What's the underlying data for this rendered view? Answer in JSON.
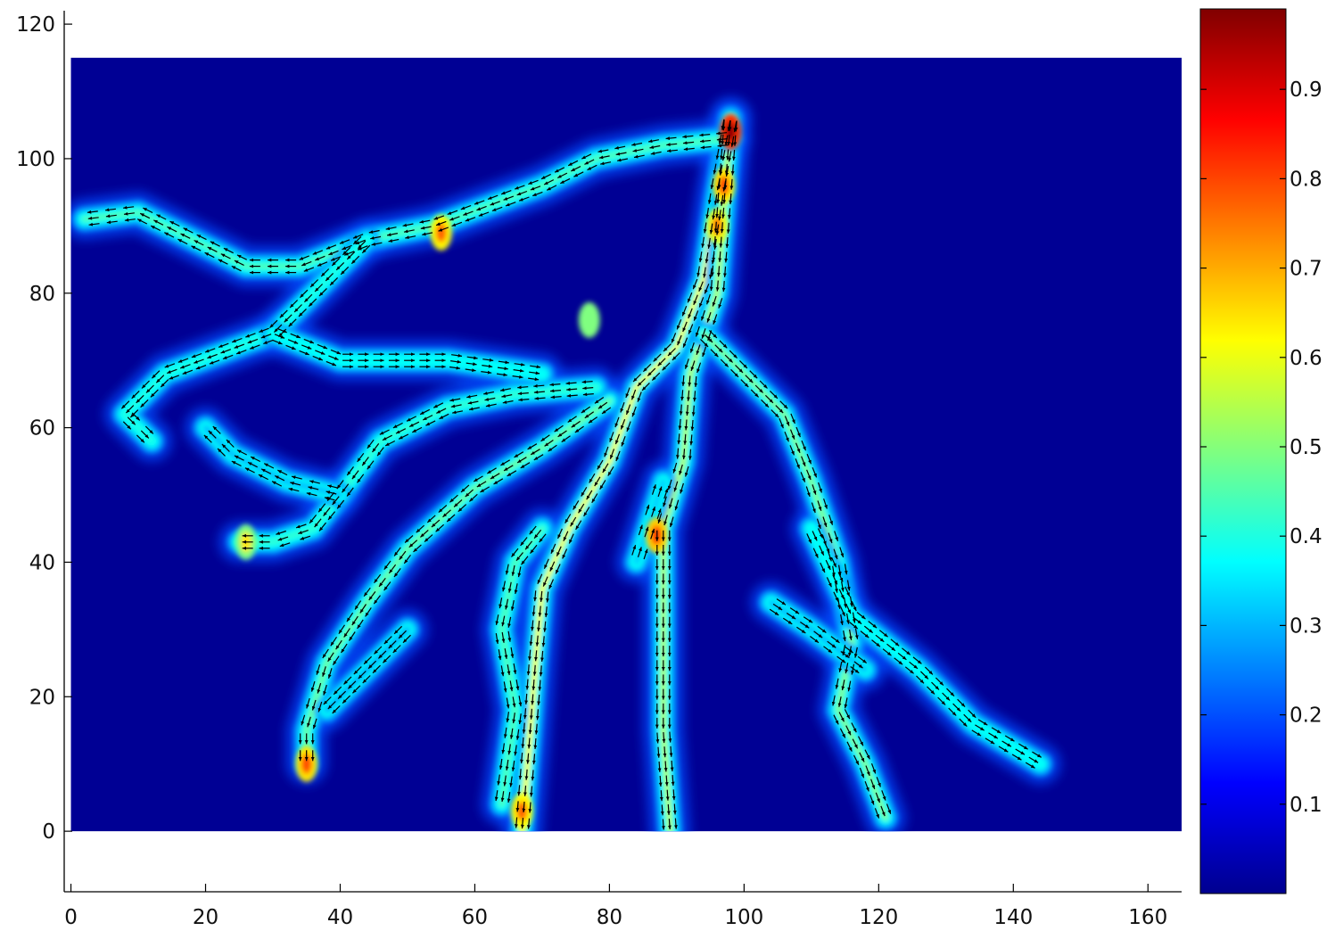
{
  "chart_data": {
    "type": "heatmap",
    "title": "",
    "xlabel": "",
    "ylabel": "",
    "xlim": [
      -1,
      165
    ],
    "ylim": [
      -9,
      122
    ],
    "x_ticks": [
      0,
      20,
      40,
      60,
      80,
      100,
      120,
      140,
      160
    ],
    "y_ticks": [
      0,
      20,
      40,
      60,
      80,
      100,
      120
    ],
    "x_tick_labels": [
      "0",
      "20",
      "40",
      "60",
      "80",
      "100",
      "120",
      "140",
      "160"
    ],
    "y_tick_labels": [
      "0",
      "20",
      "40",
      "60",
      "80",
      "100",
      "120"
    ],
    "heatmap_extent": {
      "x": [
        0,
        165
      ],
      "y": [
        0,
        115
      ]
    },
    "colormap": "jet",
    "colorbar": {
      "range": [
        0,
        0.99
      ],
      "ticks": [
        0.1,
        0.2,
        0.3,
        0.4,
        0.5,
        0.6,
        0.7,
        0.8,
        0.9
      ],
      "tick_labels": [
        "0.1",
        "0.2",
        "0.3",
        "0.4",
        "0.5",
        "0.6",
        "0.7",
        "0.8",
        "0.9"
      ],
      "location": "right"
    },
    "background_value": 0.02,
    "quiver": {
      "present": true,
      "color": "#000000"
    },
    "channels": [
      {
        "points": [
          [
            98,
            106
          ],
          [
            96,
            95
          ],
          [
            94,
            82
          ],
          [
            90,
            72
          ],
          [
            84,
            66
          ],
          [
            80,
            55
          ],
          [
            74,
            45
          ],
          [
            70,
            36
          ],
          [
            69,
            25
          ],
          [
            68,
            12
          ],
          [
            67,
            0
          ]
        ],
        "peak": 0.62
      },
      {
        "points": [
          [
            98,
            106
          ],
          [
            96,
            80
          ],
          [
            92,
            68
          ],
          [
            91,
            55
          ],
          [
            88,
            45
          ],
          [
            88,
            30
          ],
          [
            88,
            15
          ],
          [
            89,
            0
          ]
        ],
        "peak": 0.55
      },
      {
        "points": [
          [
            94,
            74
          ],
          [
            100,
            68
          ],
          [
            106,
            62
          ],
          [
            110,
            52
          ],
          [
            114,
            40
          ],
          [
            116,
            28
          ],
          [
            114,
            18
          ],
          [
            118,
            10
          ],
          [
            121,
            2
          ]
        ],
        "peak": 0.5
      },
      {
        "points": [
          [
            80,
            64
          ],
          [
            70,
            57
          ],
          [
            60,
            51
          ],
          [
            50,
            42
          ],
          [
            44,
            34
          ],
          [
            38,
            25
          ],
          [
            35,
            15
          ],
          [
            35,
            10
          ]
        ],
        "peak": 0.48
      },
      {
        "points": [
          [
            78,
            66
          ],
          [
            66,
            65
          ],
          [
            56,
            63
          ],
          [
            46,
            58
          ],
          [
            40,
            50
          ],
          [
            36,
            45
          ],
          [
            30,
            43
          ],
          [
            25,
            43
          ]
        ],
        "peak": 0.42
      },
      {
        "points": [
          [
            98,
            103
          ],
          [
            88,
            102
          ],
          [
            78,
            100
          ],
          [
            70,
            96
          ],
          [
            62,
            93
          ],
          [
            54,
            90
          ],
          [
            44,
            88
          ],
          [
            34,
            84
          ],
          [
            26,
            84
          ],
          [
            18,
            88
          ],
          [
            10,
            92
          ],
          [
            2,
            91
          ]
        ],
        "peak": 0.45
      },
      {
        "points": [
          [
            44,
            88
          ],
          [
            36,
            80
          ],
          [
            30,
            74
          ],
          [
            22,
            71
          ],
          [
            14,
            68
          ],
          [
            8,
            62
          ],
          [
            12,
            58
          ]
        ],
        "peak": 0.4
      },
      {
        "points": [
          [
            30,
            74
          ],
          [
            40,
            70
          ],
          [
            56,
            70
          ],
          [
            70,
            68
          ]
        ],
        "peak": 0.38
      },
      {
        "points": [
          [
            70,
            45
          ],
          [
            66,
            40
          ],
          [
            64,
            30
          ],
          [
            66,
            18
          ],
          [
            64,
            4
          ]
        ],
        "peak": 0.45
      },
      {
        "points": [
          [
            110,
            45
          ],
          [
            116,
            32
          ],
          [
            126,
            24
          ],
          [
            134,
            16
          ],
          [
            144,
            10
          ]
        ],
        "peak": 0.38
      },
      {
        "points": [
          [
            104,
            34
          ],
          [
            110,
            30
          ],
          [
            118,
            24
          ]
        ],
        "peak": 0.3
      },
      {
        "points": [
          [
            40,
            50
          ],
          [
            32,
            52
          ],
          [
            24,
            56
          ],
          [
            20,
            60
          ]
        ],
        "peak": 0.3
      },
      {
        "points": [
          [
            50,
            30
          ],
          [
            44,
            24
          ],
          [
            38,
            18
          ]
        ],
        "peak": 0.28
      },
      {
        "points": [
          [
            84,
            40
          ],
          [
            86,
            46
          ],
          [
            88,
            52
          ]
        ],
        "peak": 0.32
      }
    ],
    "hotspots": [
      {
        "x": 98,
        "y": 104,
        "value": 0.98
      },
      {
        "x": 97,
        "y": 96,
        "value": 0.8
      },
      {
        "x": 96,
        "y": 90,
        "value": 0.75
      },
      {
        "x": 67,
        "y": 3,
        "value": 0.78
      },
      {
        "x": 35,
        "y": 10,
        "value": 0.8
      },
      {
        "x": 87,
        "y": 44,
        "value": 0.82
      },
      {
        "x": 55,
        "y": 89,
        "value": 0.78
      },
      {
        "x": 26,
        "y": 43,
        "value": 0.65
      },
      {
        "x": 77,
        "y": 76,
        "value": 0.5
      }
    ]
  }
}
